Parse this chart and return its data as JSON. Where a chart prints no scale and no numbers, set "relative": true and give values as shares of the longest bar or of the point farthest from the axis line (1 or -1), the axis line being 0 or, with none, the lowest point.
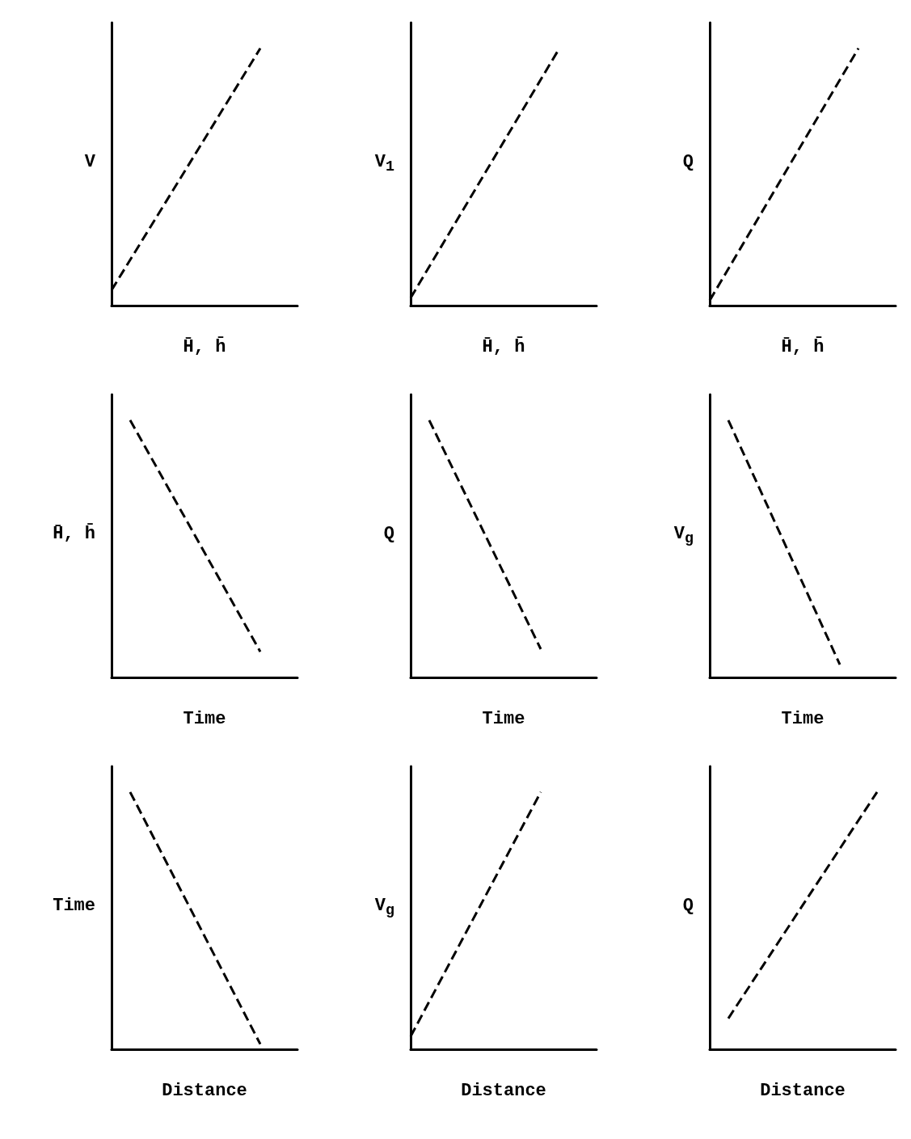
{
  "chart_data": [
    {
      "type": "line",
      "relative": true,
      "ylabel": "V",
      "xlabel": "H̄, h̄",
      "categories": [
        null,
        null,
        null,
        null,
        null,
        null,
        null,
        null,
        null,
        null,
        null
      ],
      "line_style": "dashed",
      "marker": "none",
      "series": [
        {
          "color": "#000000",
          "values": [
            0.06,
            null,
            null,
            null,
            null,
            null,
            null,
            null,
            1,
            null,
            null
          ]
        }
      ]
    },
    {
      "type": "line",
      "relative": true,
      "ylabel": "V$_{1}$",
      "xlabel": "H̄, h̄",
      "categories": [
        null,
        null,
        null,
        null,
        null,
        null,
        null,
        null,
        null,
        null,
        null
      ],
      "line_style": "dashed",
      "marker": "none",
      "series": [
        {
          "color": "#000000",
          "values": [
            0.03,
            null,
            null,
            null,
            null,
            null,
            null,
            null,
            1,
            null,
            null
          ]
        }
      ]
    },
    {
      "type": "line",
      "relative": true,
      "ylabel": "Q",
      "xlabel": "H̄, h̄",
      "categories": [
        null,
        null,
        null,
        null,
        null,
        null,
        null,
        null,
        null,
        null,
        null
      ],
      "line_style": "dashed",
      "marker": "none",
      "series": [
        {
          "color": "#000000",
          "values": [
            0.02,
            null,
            null,
            null,
            null,
            null,
            null,
            null,
            1,
            null,
            null
          ]
        }
      ]
    },
    {
      "type": "line",
      "relative": true,
      "ylabel": "H̄, h̄",
      "xlabel": "Time",
      "categories": [
        null,
        null,
        null,
        null,
        null,
        null,
        null,
        null,
        null,
        null,
        null
      ],
      "line_style": "dashed",
      "marker": "none",
      "series": [
        {
          "color": "#000000",
          "values": [
            null,
            1,
            null,
            null,
            null,
            null,
            null,
            null,
            0.1,
            null,
            null
          ]
        }
      ]
    },
    {
      "type": "line",
      "relative": true,
      "ylabel": "Q",
      "xlabel": "Time",
      "categories": [
        null,
        null,
        null,
        null,
        null,
        null,
        null,
        null,
        null,
        null,
        null
      ],
      "line_style": "dashed",
      "marker": "none",
      "series": [
        {
          "color": "#000000",
          "values": [
            null,
            1,
            null,
            null,
            null,
            null,
            null,
            0.11,
            null,
            null,
            null
          ]
        }
      ]
    },
    {
      "type": "line",
      "relative": true,
      "ylabel": "V$_{g}$",
      "xlabel": "Time",
      "categories": [
        null,
        null,
        null,
        null,
        null,
        null,
        null,
        null,
        null,
        null,
        null
      ],
      "line_style": "dashed",
      "marker": "none",
      "series": [
        {
          "color": "#000000",
          "values": [
            null,
            1,
            null,
            null,
            null,
            null,
            null,
            0.05,
            null,
            null,
            null
          ]
        }
      ]
    },
    {
      "type": "line",
      "relative": true,
      "ylabel": "Time",
      "xlabel": "Distance",
      "categories": [
        null,
        null,
        null,
        null,
        null,
        null,
        null,
        null,
        null,
        null,
        null
      ],
      "line_style": "dashed",
      "marker": "none",
      "series": [
        {
          "color": "#000000",
          "values": [
            null,
            1,
            null,
            null,
            null,
            null,
            null,
            null,
            0.02,
            null,
            null
          ]
        }
      ]
    },
    {
      "type": "line",
      "relative": true,
      "ylabel": "V$_{g}$",
      "xlabel": "Distance",
      "categories": [
        null,
        null,
        null,
        null,
        null,
        null,
        null,
        null,
        null,
        null,
        null
      ],
      "line_style": "dashed",
      "marker": "none",
      "series": [
        {
          "color": "#000000",
          "values": [
            0.05,
            null,
            null,
            null,
            null,
            null,
            null,
            1,
            null,
            null,
            null
          ]
        }
      ]
    },
    {
      "type": "line",
      "relative": true,
      "ylabel": "Q",
      "xlabel": "Distance",
      "categories": [
        null,
        null,
        null,
        null,
        null,
        null,
        null,
        null,
        null,
        null,
        null
      ],
      "line_style": "dashed",
      "marker": "none",
      "series": [
        {
          "color": "#000000",
          "values": [
            null,
            0.12,
            null,
            null,
            null,
            null,
            null,
            null,
            null,
            1,
            null
          ]
        }
      ]
    }
  ]
}
